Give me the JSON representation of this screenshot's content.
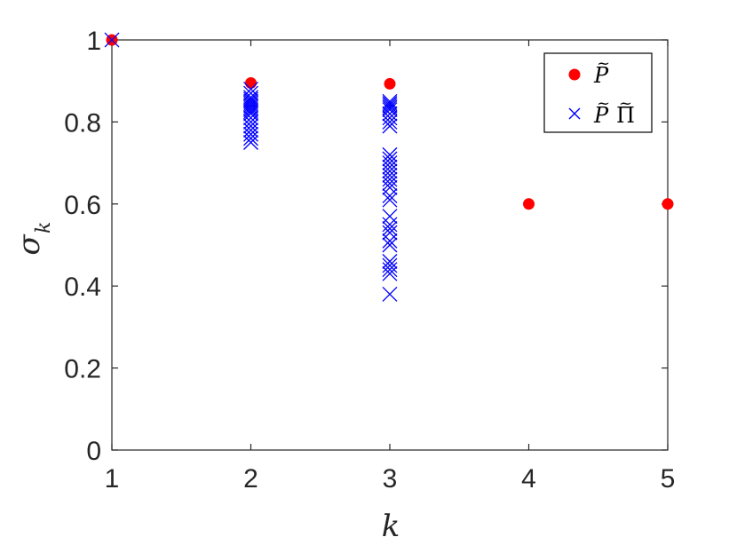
{
  "chart_data": {
    "type": "scatter",
    "xlabel": "k",
    "ylabel": {
      "main": "σ",
      "subscript": "k"
    },
    "xlim": [
      1,
      5
    ],
    "ylim": [
      0,
      1
    ],
    "xticks": [
      1,
      2,
      3,
      4,
      5
    ],
    "xtick_labels": [
      "1",
      "2",
      "3",
      "4",
      "5"
    ],
    "yticks": [
      0,
      0.2,
      0.4,
      0.6,
      0.8,
      1
    ],
    "ytick_labels": [
      "0",
      "0.2",
      "0.4",
      "0.6",
      "0.8",
      "1"
    ],
    "grid": false,
    "legend_position": "top-right",
    "series": [
      {
        "name": "P̃",
        "marker": "filled-circle",
        "color": "#ff0000",
        "points": [
          {
            "x": 1,
            "y": 1.0
          },
          {
            "x": 2,
            "y": 0.895
          },
          {
            "x": 3,
            "y": 0.893
          },
          {
            "x": 4,
            "y": 0.6
          },
          {
            "x": 5,
            "y": 0.6
          }
        ]
      },
      {
        "name": "P̃Π̃",
        "marker": "x",
        "color": "#0000ff",
        "points": [
          {
            "x": 1,
            "y": 1.0
          },
          {
            "x": 2,
            "y": 0.88
          },
          {
            "x": 2,
            "y": 0.87
          },
          {
            "x": 2,
            "y": 0.86
          },
          {
            "x": 2,
            "y": 0.855
          },
          {
            "x": 2,
            "y": 0.85
          },
          {
            "x": 2,
            "y": 0.845
          },
          {
            "x": 2,
            "y": 0.84
          },
          {
            "x": 2,
            "y": 0.835
          },
          {
            "x": 2,
            "y": 0.83
          },
          {
            "x": 2,
            "y": 0.825
          },
          {
            "x": 2,
            "y": 0.82
          },
          {
            "x": 2,
            "y": 0.81
          },
          {
            "x": 2,
            "y": 0.8
          },
          {
            "x": 2,
            "y": 0.79
          },
          {
            "x": 2,
            "y": 0.78
          },
          {
            "x": 2,
            "y": 0.77
          },
          {
            "x": 2,
            "y": 0.76
          },
          {
            "x": 2,
            "y": 0.75
          },
          {
            "x": 3,
            "y": 0.85
          },
          {
            "x": 3,
            "y": 0.845
          },
          {
            "x": 3,
            "y": 0.84
          },
          {
            "x": 3,
            "y": 0.835
          },
          {
            "x": 3,
            "y": 0.83
          },
          {
            "x": 3,
            "y": 0.82
          },
          {
            "x": 3,
            "y": 0.81
          },
          {
            "x": 3,
            "y": 0.8
          },
          {
            "x": 3,
            "y": 0.79
          },
          {
            "x": 3,
            "y": 0.72
          },
          {
            "x": 3,
            "y": 0.71
          },
          {
            "x": 3,
            "y": 0.7
          },
          {
            "x": 3,
            "y": 0.69
          },
          {
            "x": 3,
            "y": 0.68
          },
          {
            "x": 3,
            "y": 0.67
          },
          {
            "x": 3,
            "y": 0.66
          },
          {
            "x": 3,
            "y": 0.65
          },
          {
            "x": 3,
            "y": 0.64
          },
          {
            "x": 3,
            "y": 0.62
          },
          {
            "x": 3,
            "y": 0.61
          },
          {
            "x": 3,
            "y": 0.57
          },
          {
            "x": 3,
            "y": 0.55
          },
          {
            "x": 3,
            "y": 0.54
          },
          {
            "x": 3,
            "y": 0.53
          },
          {
            "x": 3,
            "y": 0.51
          },
          {
            "x": 3,
            "y": 0.5
          },
          {
            "x": 3,
            "y": 0.46
          },
          {
            "x": 3,
            "y": 0.45
          },
          {
            "x": 3,
            "y": 0.44
          },
          {
            "x": 3,
            "y": 0.43
          },
          {
            "x": 3,
            "y": 0.38
          }
        ]
      }
    ],
    "legend": [
      {
        "base": "P",
        "tilde": "~",
        "suffix": "",
        "suffix_tilde": ""
      },
      {
        "base": "P",
        "tilde": "~",
        "suffix": "Π",
        "suffix_tilde": "~"
      }
    ]
  }
}
